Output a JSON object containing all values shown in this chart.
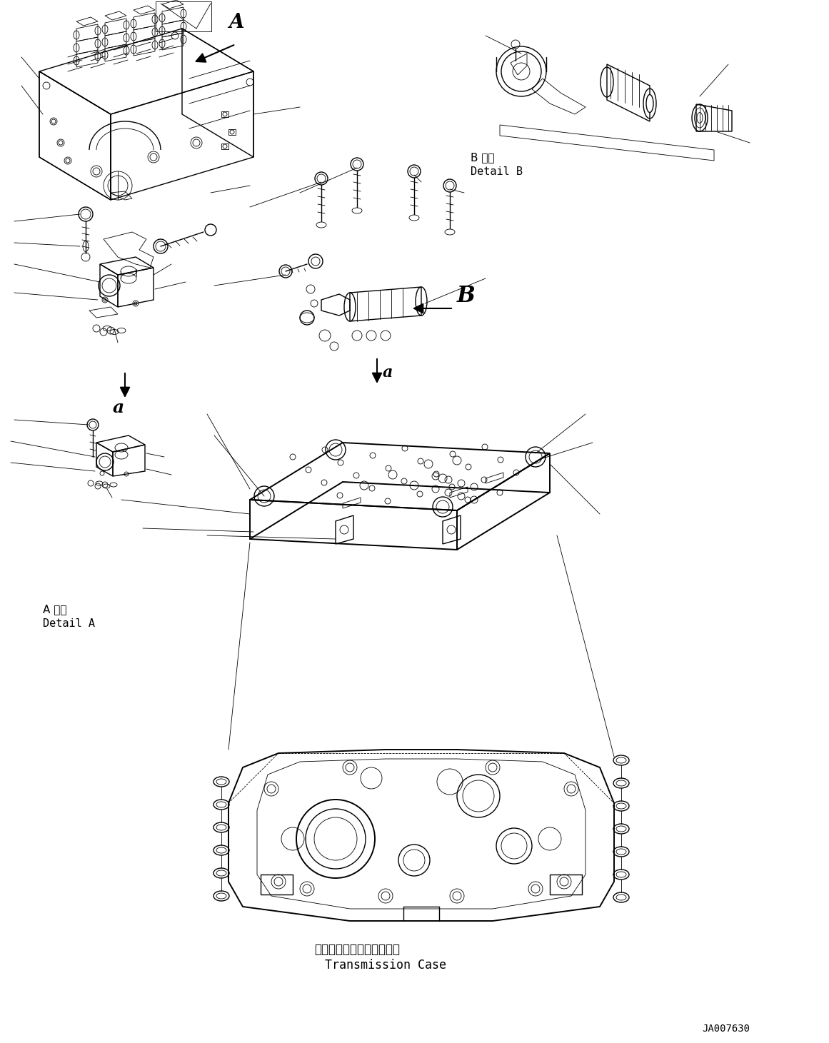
{
  "background_color": "#ffffff",
  "figure_width": 11.61,
  "figure_height": 14.61,
  "dpi": 100,
  "label_A_detail_japanese": "A 詳細",
  "label_A_detail_english": "Detail A",
  "label_B_detail_japanese": "B 詳細",
  "label_B_detail_english": "Detail B",
  "label_transmission_japanese": "トランスミッションケース",
  "label_transmission_english": "Transmission Case",
  "label_part_number": "JA007630",
  "label_a1": "a",
  "label_a2": "a",
  "label_B": "B",
  "label_A": "A",
  "line_color": "#000000",
  "text_color": "#000000",
  "arrow_color": "#000000"
}
